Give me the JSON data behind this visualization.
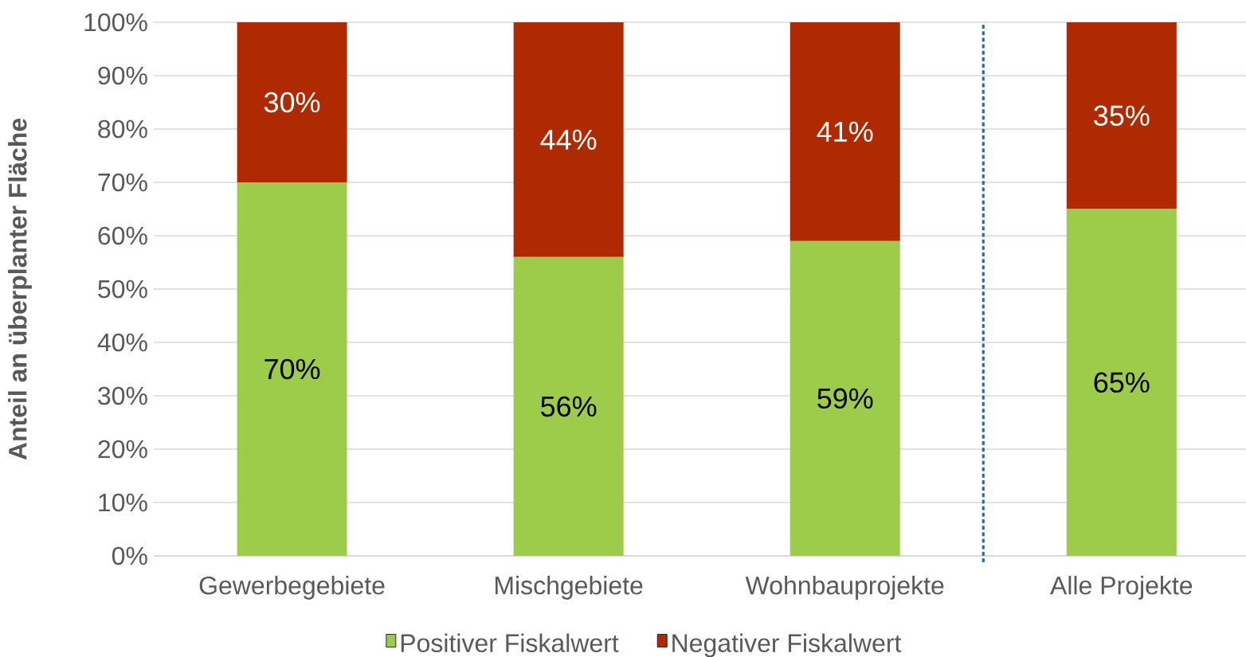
{
  "chart_data": {
    "type": "bar",
    "stacked": true,
    "ylabel": "Anteil an überplanter Fläche",
    "categories": [
      "Gewerbegebiete",
      "Mischgebiete",
      "Wohnbauprojekte",
      "Alle Projekte"
    ],
    "series": [
      {
        "name": "Positiver Fiskalwert",
        "color": "#9dcb4a",
        "values": [
          70,
          56,
          59,
          65
        ],
        "value_labels": [
          "70%",
          "56%",
          "59%",
          "65%"
        ]
      },
      {
        "name": "Negativer Fiskalwert",
        "color": "#b02a00",
        "values": [
          30,
          44,
          41,
          35
        ],
        "value_labels": [
          "30%",
          "44%",
          "41%",
          "35%"
        ]
      }
    ],
    "ylim": [
      0,
      100
    ],
    "yticks": [
      {
        "value": 0,
        "label": "0%"
      },
      {
        "value": 10,
        "label": "10%"
      },
      {
        "value": 20,
        "label": "20%"
      },
      {
        "value": 30,
        "label": "30%"
      },
      {
        "value": 40,
        "label": "40%"
      },
      {
        "value": 50,
        "label": "50%"
      },
      {
        "value": 60,
        "label": "60%"
      },
      {
        "value": 70,
        "label": "70%"
      },
      {
        "value": 80,
        "label": "80%"
      },
      {
        "value": 90,
        "label": "90%"
      },
      {
        "value": 100,
        "label": "100%"
      }
    ],
    "grid": "y",
    "legend": "bottom"
  }
}
